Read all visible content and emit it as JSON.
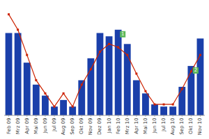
{
  "chart_data": {
    "type": "bar",
    "categories": [
      "Feb 09",
      "Mrz 09",
      "Apr 09",
      "Mai 09",
      "Jun 09",
      "Jul 09",
      "Aug 09",
      "Sep 09",
      "Okt 09",
      "Nov 09",
      "Dez 09",
      "Jan 10",
      "Feb 10",
      "Mrz 10",
      "Apr 10",
      "Mai 10",
      "Jun 10",
      "Jul 10",
      "Aug 10",
      "Sep 10",
      "Okt 10",
      "Nov 10"
    ],
    "series": [
      {
        "type": "bar",
        "color": "#1a3faa",
        "values": [
          75,
          75,
          48,
          28,
          18,
          8,
          14,
          8,
          32,
          52,
          75,
          72,
          78,
          65,
          32,
          20,
          10,
          8,
          8,
          26,
          45,
          70
        ]
      },
      {
        "type": "line",
        "color": "#cc2200",
        "marker": "square",
        "values": [
          92,
          78,
          55,
          32,
          20,
          8,
          20,
          8,
          28,
          42,
          58,
          65,
          62,
          55,
          38,
          22,
          10,
          10,
          10,
          24,
          40,
          55
        ]
      }
    ],
    "annotations": [
      {
        "text": "1",
        "category": "Feb 10",
        "color": "#5cb85c"
      },
      {
        "text": "2",
        "category": "Okt 10",
        "color": "#5cb85c"
      }
    ],
    "ylim": [
      0,
      100
    ],
    "tick_labels": "x",
    "grid": false
  }
}
